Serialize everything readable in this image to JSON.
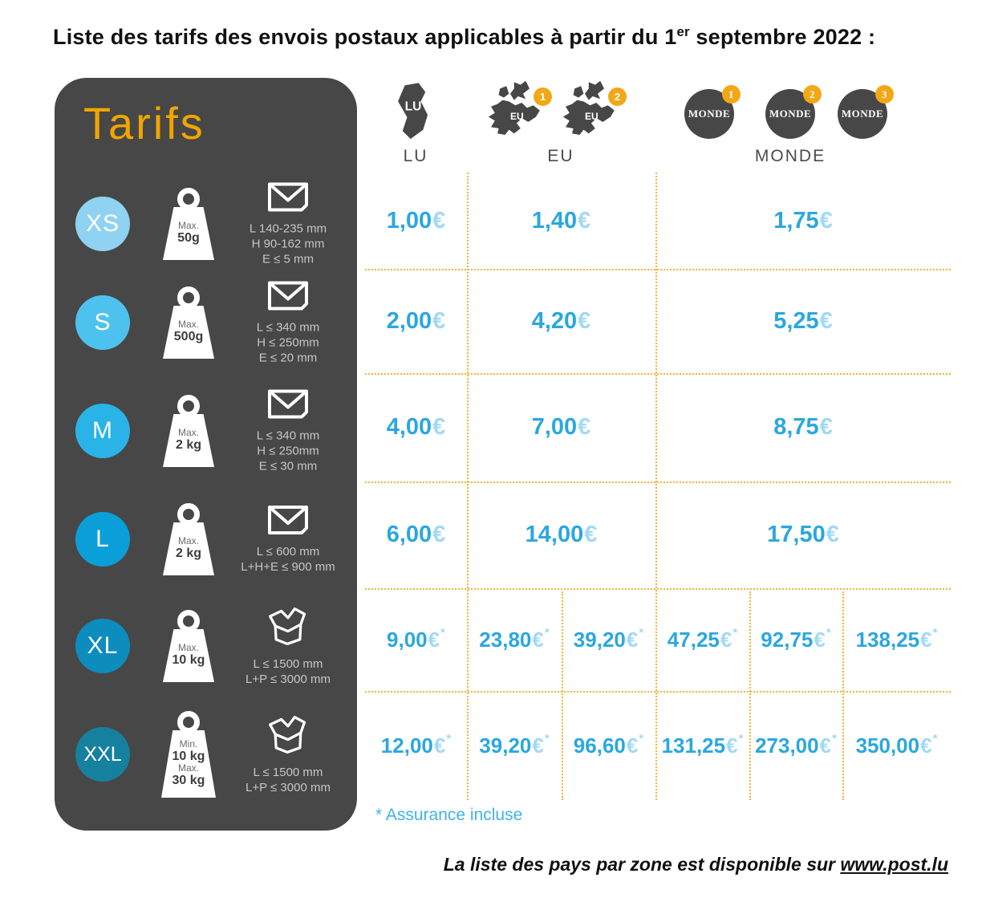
{
  "title": {
    "prefix": "Liste des tarifs des envois postaux applicables à partir du 1",
    "sup": "er",
    "suffix": " septembre 2022 :"
  },
  "panel": {
    "heading": "Tarifs",
    "rows": [
      {
        "size": "XS",
        "circle_color": "#8FD2F1",
        "icon": "envelope",
        "weight_lines": [
          [
            "Max.",
            "50g"
          ]
        ],
        "dims": [
          "L 140-235 mm",
          "H 90-162 mm",
          "E ≤ 5 mm"
        ]
      },
      {
        "size": "S",
        "circle_color": "#4EC2EE",
        "icon": "envelope",
        "weight_lines": [
          [
            "Max.",
            "500g"
          ]
        ],
        "dims": [
          "L ≤ 340 mm",
          "H ≤ 250mm",
          "E ≤ 20 mm"
        ]
      },
      {
        "size": "M",
        "circle_color": "#29B3E7",
        "icon": "envelope",
        "weight_lines": [
          [
            "Max.",
            "2 kg"
          ]
        ],
        "dims": [
          "L ≤ 340 mm",
          "H ≤ 250mm",
          "E ≤ 30 mm"
        ]
      },
      {
        "size": "L",
        "circle_color": "#0A9FD9",
        "icon": "envelope",
        "weight_lines": [
          [
            "Max.",
            "2 kg"
          ]
        ],
        "dims": [
          "L ≤ 600 mm",
          "L+H+E ≤ 900 mm"
        ]
      },
      {
        "size": "XL",
        "circle_color": "#0D8CBE",
        "icon": "box",
        "weight_lines": [
          [
            "Max.",
            "10 kg"
          ]
        ],
        "dims": [
          "L ≤ 1500 mm",
          "L+P ≤ 3000 mm"
        ]
      },
      {
        "size": "XXL",
        "circle_color": "#16809F",
        "icon": "box",
        "weight_lines": [
          [
            "Min.",
            "10 kg"
          ],
          [
            "Max.",
            "30 kg"
          ]
        ],
        "dims": [
          "L ≤ 1500 mm",
          "L+P ≤ 3000 mm"
        ]
      }
    ]
  },
  "header": {
    "lu": {
      "label": "LU",
      "map_text": "LU"
    },
    "eu": {
      "label": "EU",
      "map_text": "EU",
      "badges": [
        "1",
        "2"
      ]
    },
    "monde": {
      "label": "MONDE",
      "circle_text": "MONDE",
      "badges": [
        "1",
        "2",
        "3"
      ]
    }
  },
  "table": {
    "rows": [
      {
        "size": "XS",
        "prices": [
          {
            "zone": "lu",
            "amount": "1,00",
            "currency": "€",
            "starred": false
          },
          {
            "zone": "eu",
            "amount": "1,40",
            "currency": "€",
            "starred": false
          },
          {
            "zone": "monde",
            "amount": "1,75",
            "currency": "€",
            "starred": false
          }
        ]
      },
      {
        "size": "S",
        "prices": [
          {
            "zone": "lu",
            "amount": "2,00",
            "currency": "€",
            "starred": false
          },
          {
            "zone": "eu",
            "amount": "4,20",
            "currency": "€",
            "starred": false
          },
          {
            "zone": "monde",
            "amount": "5,25",
            "currency": "€",
            "starred": false
          }
        ]
      },
      {
        "size": "M",
        "prices": [
          {
            "zone": "lu",
            "amount": "4,00",
            "currency": "€",
            "starred": false
          },
          {
            "zone": "eu",
            "amount": "7,00",
            "currency": "€",
            "starred": false
          },
          {
            "zone": "monde",
            "amount": "8,75",
            "currency": "€",
            "starred": false
          }
        ]
      },
      {
        "size": "L",
        "prices": [
          {
            "zone": "lu",
            "amount": "6,00",
            "currency": "€",
            "starred": false
          },
          {
            "zone": "eu",
            "amount": "14,00",
            "currency": "€",
            "starred": false
          },
          {
            "zone": "monde",
            "amount": "17,50",
            "currency": "€",
            "starred": false
          }
        ]
      },
      {
        "size": "XL",
        "prices": [
          {
            "zone": "lu",
            "amount": "9,00",
            "currency": "€",
            "starred": true
          },
          {
            "zone": "eu1",
            "amount": "23,80",
            "currency": "€",
            "starred": true
          },
          {
            "zone": "eu2",
            "amount": "39,20",
            "currency": "€",
            "starred": true
          },
          {
            "zone": "monde1",
            "amount": "47,25",
            "currency": "€",
            "starred": true
          },
          {
            "zone": "monde2",
            "amount": "92,75",
            "currency": "€",
            "starred": true
          },
          {
            "zone": "monde3",
            "amount": "138,25",
            "currency": "€",
            "starred": true
          }
        ]
      },
      {
        "size": "XXL",
        "prices": [
          {
            "zone": "lu",
            "amount": "12,00",
            "currency": "€",
            "starred": true
          },
          {
            "zone": "eu1",
            "amount": "39,20",
            "currency": "€",
            "starred": true
          },
          {
            "zone": "eu2",
            "amount": "96,60",
            "currency": "€",
            "starred": true
          },
          {
            "zone": "monde1",
            "amount": "131,25",
            "currency": "€",
            "starred": true
          },
          {
            "zone": "monde2",
            "amount": "273,00",
            "currency": "€",
            "starred": true
          },
          {
            "zone": "monde3",
            "amount": "350,00",
            "currency": "€",
            "starred": true
          }
        ]
      }
    ],
    "footnote": "* Assurance incluse"
  },
  "footer": {
    "text": "La liste des pays par zone est disponible sur ",
    "link": "www.post.lu"
  },
  "colors": {
    "panel_dark": "#474747",
    "tarifs_orange": "#F0A500",
    "grid_yellow": "#F5B335",
    "price_blue": "#2AA7DF",
    "price_light_blue": "#A2D9F4",
    "badge_orange": "#F2A716",
    "footnote_blue": "#3FB3E8"
  }
}
